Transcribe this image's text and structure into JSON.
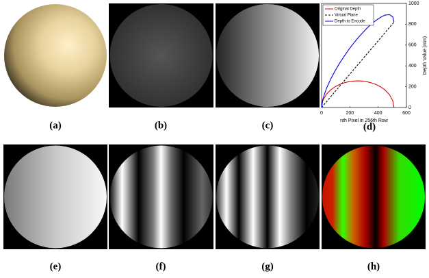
{
  "panels": [
    {
      "label": "(a)"
    },
    {
      "label": "(b)"
    },
    {
      "label": "(c)"
    },
    {
      "label": "(d)"
    },
    {
      "label": "(e)"
    },
    {
      "label": "(f)"
    },
    {
      "label": "(g)"
    },
    {
      "label": "(h)"
    }
  ],
  "chart_data": {
    "type": "line",
    "xlabel": "nth Pixel in 256th Row",
    "ylabel": "Depth Value (mm)",
    "x": [
      0,
      8,
      32,
      64,
      96,
      128,
      160,
      192,
      224,
      256,
      288,
      320,
      352,
      384,
      416,
      448,
      480,
      504,
      512
    ],
    "series": [
      {
        "name": "Original Depth",
        "color": "#e00000",
        "dash": false,
        "values": [
          0,
          63,
          124,
          169,
          200,
          222,
          237,
          248,
          254,
          256,
          254,
          248,
          237,
          222,
          200,
          169,
          124,
          63,
          0
        ]
      },
      {
        "name": "Virtual Plane",
        "color": "#000000",
        "dash": true,
        "values": [
          0,
          13,
          51,
          103,
          154,
          205,
          256,
          308,
          359,
          410,
          461,
          513,
          564,
          615,
          666,
          718,
          769,
          807,
          820
        ]
      },
      {
        "name": "Depth to Encode",
        "color": "#0000e0",
        "dash": false,
        "values": [
          0,
          76,
          175,
          272,
          354,
          427,
          493,
          556,
          613,
          666,
          715,
          761,
          801,
          837,
          866,
          887,
          893,
          870,
          820
        ]
      }
    ],
    "xlim": [
      0,
      600
    ],
    "xticks": [
      0,
      200,
      400,
      600
    ],
    "ylim": [
      0,
      1000
    ],
    "yticks": [
      0,
      200,
      400,
      600,
      800,
      1000
    ],
    "legend": "upper left",
    "grid": false
  }
}
